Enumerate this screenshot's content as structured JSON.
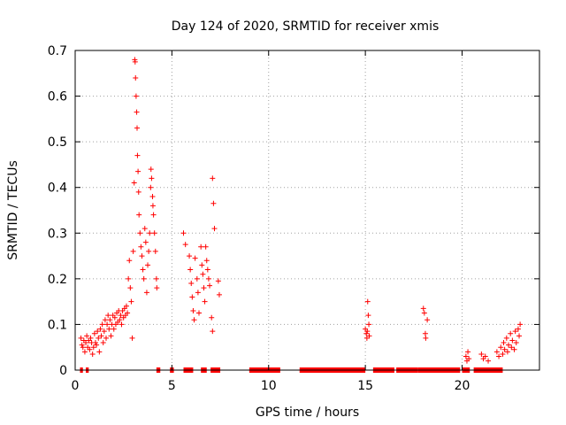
{
  "chart_data": {
    "type": "scatter",
    "title": "Day 124 of 2020, SRMTID for receiver xmis",
    "xlabel": "GPS time / hours",
    "ylabel": "SRMTID / TECUs",
    "xlim": [
      0,
      24
    ],
    "ylim": [
      0,
      0.7
    ],
    "x_ticks": [
      0,
      5,
      10,
      15,
      20
    ],
    "x_tick_labels": [
      "0",
      "5",
      "10",
      "15",
      "20"
    ],
    "y_ticks": [
      0,
      0.1,
      0.2,
      0.3,
      0.4,
      0.5,
      0.6,
      0.7
    ],
    "y_tick_labels": [
      "0",
      "0.1",
      "0.2",
      "0.3",
      "0.4",
      "0.5",
      "0.6",
      "0.7"
    ],
    "grid": true,
    "legend": "none",
    "marker": "plus",
    "series": [
      {
        "name": "SRMTID",
        "color": "#ff0000",
        "points": [
          [
            0.3,
            0.07
          ],
          [
            0.35,
            0.055
          ],
          [
            0.4,
            0.05
          ],
          [
            0.45,
            0.065
          ],
          [
            0.5,
            0.04
          ],
          [
            0.55,
            0.06
          ],
          [
            0.6,
            0.075
          ],
          [
            0.65,
            0.05
          ],
          [
            0.7,
            0.065
          ],
          [
            0.75,
            0.045
          ],
          [
            0.8,
            0.07
          ],
          [
            0.85,
            0.06
          ],
          [
            0.9,
            0.035
          ],
          [
            0.95,
            0.05
          ],
          [
            1.0,
            0.08
          ],
          [
            1.05,
            0.06
          ],
          [
            1.1,
            0.055
          ],
          [
            1.15,
            0.085
          ],
          [
            1.2,
            0.07
          ],
          [
            1.25,
            0.04
          ],
          [
            1.3,
            0.09
          ],
          [
            1.35,
            0.075
          ],
          [
            1.4,
            0.1
          ],
          [
            1.45,
            0.06
          ],
          [
            1.5,
            0.085
          ],
          [
            1.55,
            0.11
          ],
          [
            1.6,
            0.07
          ],
          [
            1.65,
            0.1
          ],
          [
            1.7,
            0.12
          ],
          [
            1.75,
            0.09
          ],
          [
            1.8,
            0.11
          ],
          [
            1.85,
            0.075
          ],
          [
            1.9,
            0.1
          ],
          [
            1.95,
            0.12
          ],
          [
            2.0,
            0.09
          ],
          [
            2.05,
            0.115
          ],
          [
            2.1,
            0.1
          ],
          [
            2.15,
            0.125
          ],
          [
            2.2,
            0.105
          ],
          [
            2.25,
            0.13
          ],
          [
            2.3,
            0.11
          ],
          [
            2.35,
            0.12
          ],
          [
            2.4,
            0.1
          ],
          [
            2.45,
            0.13
          ],
          [
            2.5,
            0.115
          ],
          [
            2.55,
            0.135
          ],
          [
            2.6,
            0.12
          ],
          [
            2.65,
            0.14
          ],
          [
            2.7,
            0.125
          ],
          [
            2.75,
            0.2
          ],
          [
            2.8,
            0.24
          ],
          [
            2.85,
            0.18
          ],
          [
            2.9,
            0.15
          ],
          [
            2.95,
            0.07
          ],
          [
            3.0,
            0.26
          ],
          [
            3.05,
            0.41
          ],
          [
            3.08,
            0.68
          ],
          [
            3.1,
            0.675
          ],
          [
            3.12,
            0.64
          ],
          [
            3.15,
            0.6
          ],
          [
            3.18,
            0.565
          ],
          [
            3.2,
            0.53
          ],
          [
            3.22,
            0.47
          ],
          [
            3.25,
            0.435
          ],
          [
            3.28,
            0.39
          ],
          [
            3.3,
            0.34
          ],
          [
            3.35,
            0.3
          ],
          [
            3.4,
            0.27
          ],
          [
            3.45,
            0.25
          ],
          [
            3.5,
            0.22
          ],
          [
            3.55,
            0.2
          ],
          [
            3.6,
            0.31
          ],
          [
            3.65,
            0.28
          ],
          [
            3.7,
            0.17
          ],
          [
            3.75,
            0.23
          ],
          [
            3.8,
            0.26
          ],
          [
            3.85,
            0.3
          ],
          [
            3.9,
            0.4
          ],
          [
            3.92,
            0.44
          ],
          [
            3.95,
            0.42
          ],
          [
            4.0,
            0.38
          ],
          [
            4.02,
            0.36
          ],
          [
            4.05,
            0.34
          ],
          [
            4.1,
            0.3
          ],
          [
            4.15,
            0.26
          ],
          [
            4.2,
            0.2
          ],
          [
            4.22,
            0.18
          ],
          [
            5.6,
            0.3
          ],
          [
            5.7,
            0.275
          ],
          [
            5.9,
            0.25
          ],
          [
            5.95,
            0.22
          ],
          [
            6.0,
            0.19
          ],
          [
            6.05,
            0.16
          ],
          [
            6.1,
            0.13
          ],
          [
            6.15,
            0.11
          ],
          [
            6.2,
            0.245
          ],
          [
            6.3,
            0.2
          ],
          [
            6.35,
            0.17
          ],
          [
            6.4,
            0.125
          ],
          [
            6.5,
            0.27
          ],
          [
            6.55,
            0.23
          ],
          [
            6.6,
            0.21
          ],
          [
            6.65,
            0.18
          ],
          [
            6.7,
            0.15
          ],
          [
            6.75,
            0.27
          ],
          [
            6.8,
            0.24
          ],
          [
            6.85,
            0.22
          ],
          [
            6.9,
            0.2
          ],
          [
            6.95,
            0.185
          ],
          [
            7.1,
            0.42
          ],
          [
            7.15,
            0.365
          ],
          [
            7.2,
            0.31
          ],
          [
            7.05,
            0.115
          ],
          [
            7.1,
            0.085
          ],
          [
            7.4,
            0.195
          ],
          [
            7.45,
            0.165
          ],
          [
            15.0,
            0.09
          ],
          [
            15.05,
            0.08
          ],
          [
            15.08,
            0.07
          ],
          [
            15.1,
            0.085
          ],
          [
            15.12,
            0.15
          ],
          [
            15.15,
            0.12
          ],
          [
            15.18,
            0.1
          ],
          [
            15.2,
            0.075
          ],
          [
            18.0,
            0.135
          ],
          [
            18.05,
            0.125
          ],
          [
            18.1,
            0.08
          ],
          [
            18.12,
            0.07
          ],
          [
            18.2,
            0.11
          ],
          [
            20.2,
            0.03
          ],
          [
            20.25,
            0.02
          ],
          [
            20.3,
            0.04
          ],
          [
            20.35,
            0.025
          ],
          [
            21.0,
            0.035
          ],
          [
            21.1,
            0.025
          ],
          [
            21.2,
            0.03
          ],
          [
            21.35,
            0.02
          ],
          [
            21.8,
            0.04
          ],
          [
            21.9,
            0.03
          ],
          [
            22.0,
            0.05
          ],
          [
            22.1,
            0.035
          ],
          [
            22.15,
            0.06
          ],
          [
            22.2,
            0.045
          ],
          [
            22.3,
            0.07
          ],
          [
            22.35,
            0.04
          ],
          [
            22.4,
            0.055
          ],
          [
            22.5,
            0.08
          ],
          [
            22.55,
            0.05
          ],
          [
            22.6,
            0.065
          ],
          [
            22.7,
            0.045
          ],
          [
            22.75,
            0.085
          ],
          [
            22.8,
            0.06
          ],
          [
            22.9,
            0.09
          ],
          [
            22.95,
            0.075
          ],
          [
            23.0,
            0.1
          ]
        ],
        "zero_bands": [
          [
            0.25,
            0.4
          ],
          [
            0.55,
            0.7
          ],
          [
            4.2,
            4.4
          ],
          [
            4.9,
            5.1
          ],
          [
            5.6,
            6.1
          ],
          [
            6.5,
            6.8
          ],
          [
            7.0,
            7.5
          ],
          [
            9.0,
            10.6
          ],
          [
            11.6,
            15.0
          ],
          [
            15.4,
            16.5
          ],
          [
            16.6,
            17.7
          ],
          [
            17.7,
            19.9
          ],
          [
            20.0,
            20.4
          ],
          [
            20.6,
            21.6
          ],
          [
            21.6,
            22.1
          ]
        ]
      }
    ]
  }
}
